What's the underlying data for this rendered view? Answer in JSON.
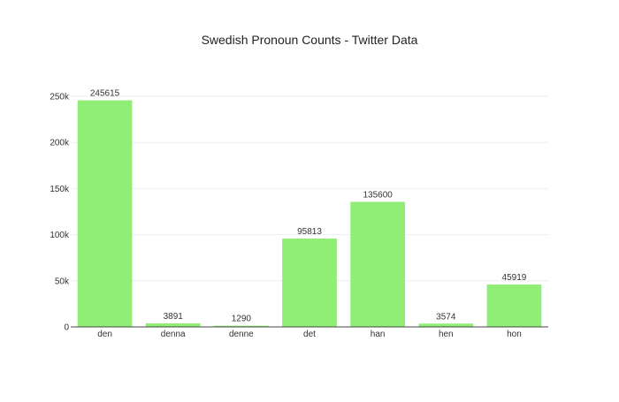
{
  "chart_data": {
    "type": "bar",
    "title": "Swedish Pronoun Counts - Twitter Data",
    "xlabel": "",
    "ylabel": "",
    "categories": [
      "den",
      "denna",
      "denne",
      "det",
      "han",
      "hen",
      "hon"
    ],
    "values": [
      245615,
      3891,
      1290,
      95813,
      135600,
      3574,
      45919
    ],
    "data_labels": [
      "245615",
      "3891",
      "1290",
      "95813",
      "135600",
      "3574",
      "45919"
    ],
    "ylim": [
      0,
      250000
    ],
    "yticks": [
      0,
      50000,
      100000,
      150000,
      200000,
      250000
    ],
    "ytick_labels": [
      "0",
      "50k",
      "100k",
      "150k",
      "200k",
      "250k"
    ],
    "grid": true,
    "legend": false,
    "colors": {
      "bar": "#90EE76",
      "grid": "#eeeeee",
      "axis": "#444444",
      "text": "#333333"
    }
  }
}
